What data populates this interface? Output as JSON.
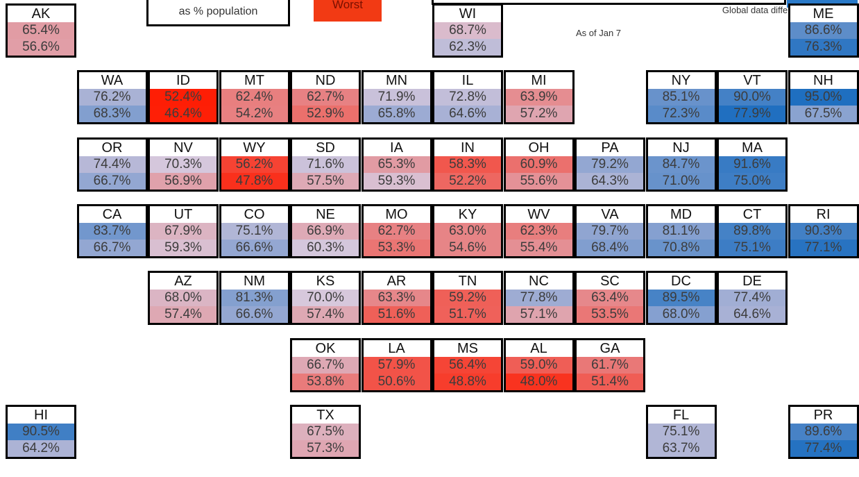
{
  "header": {
    "subtitle": "as % population",
    "worst_label": "Worst",
    "source_note": "Global data differs due to sources",
    "as_of": "As of Jan 7"
  },
  "scale": {
    "best_color": "#1f6fc0",
    "mid_color": "#d7c8dc",
    "worst_color": "#ff1a00"
  },
  "chart_data": {
    "type": "table",
    "layout": "tile-grid map of US states",
    "columns": [
      "state",
      "value_1_pct",
      "value_2_pct"
    ],
    "tiles": [
      {
        "state": "AK",
        "row": 0,
        "col": 0,
        "v1": 65.4,
        "v2": 56.6
      },
      {
        "state": "WI",
        "row": 0,
        "col": 6,
        "v1": 68.7,
        "v2": 62.3
      },
      {
        "state": "ME",
        "row": 0,
        "col": 11,
        "v1": 86.6,
        "v2": 76.3
      },
      {
        "state": "WA",
        "row": 1,
        "col": 1,
        "v1": 76.2,
        "v2": 68.3
      },
      {
        "state": "ID",
        "row": 1,
        "col": 2,
        "v1": 52.4,
        "v2": 46.4
      },
      {
        "state": "MT",
        "row": 1,
        "col": 3,
        "v1": 62.4,
        "v2": 54.2
      },
      {
        "state": "ND",
        "row": 1,
        "col": 4,
        "v1": 62.7,
        "v2": 52.9
      },
      {
        "state": "MN",
        "row": 1,
        "col": 5,
        "v1": 71.9,
        "v2": 65.8
      },
      {
        "state": "IL",
        "row": 1,
        "col": 6,
        "v1": 72.8,
        "v2": 64.6
      },
      {
        "state": "MI",
        "row": 1,
        "col": 7,
        "v1": 63.9,
        "v2": 57.2
      },
      {
        "state": "NY",
        "row": 1,
        "col": 9,
        "v1": 85.1,
        "v2": 72.3
      },
      {
        "state": "VT",
        "row": 1,
        "col": 10,
        "v1": 90.0,
        "v2": 77.9
      },
      {
        "state": "NH",
        "row": 1,
        "col": 11,
        "v1": 95.0,
        "v2": 67.5
      },
      {
        "state": "OR",
        "row": 2,
        "col": 1,
        "v1": 74.4,
        "v2": 66.7
      },
      {
        "state": "NV",
        "row": 2,
        "col": 2,
        "v1": 70.3,
        "v2": 56.9
      },
      {
        "state": "WY",
        "row": 2,
        "col": 3,
        "v1": 56.2,
        "v2": 47.8
      },
      {
        "state": "SD",
        "row": 2,
        "col": 4,
        "v1": 71.6,
        "v2": 57.5
      },
      {
        "state": "IA",
        "row": 2,
        "col": 5,
        "v1": 65.3,
        "v2": 59.3
      },
      {
        "state": "IN",
        "row": 2,
        "col": 6,
        "v1": 58.3,
        "v2": 52.2
      },
      {
        "state": "OH",
        "row": 2,
        "col": 7,
        "v1": 60.9,
        "v2": 55.6
      },
      {
        "state": "PA",
        "row": 2,
        "col": 8,
        "v1": 79.2,
        "v2": 64.3
      },
      {
        "state": "NJ",
        "row": 2,
        "col": 9,
        "v1": 84.7,
        "v2": 71.0
      },
      {
        "state": "MA",
        "row": 2,
        "col": 10,
        "v1": 91.6,
        "v2": 75.0
      },
      {
        "state": "CA",
        "row": 3,
        "col": 1,
        "v1": 83.7,
        "v2": 66.7
      },
      {
        "state": "UT",
        "row": 3,
        "col": 2,
        "v1": 67.9,
        "v2": 59.3
      },
      {
        "state": "CO",
        "row": 3,
        "col": 3,
        "v1": 75.1,
        "v2": 66.6
      },
      {
        "state": "NE",
        "row": 3,
        "col": 4,
        "v1": 66.9,
        "v2": 60.3
      },
      {
        "state": "MO",
        "row": 3,
        "col": 5,
        "v1": 62.7,
        "v2": 53.3
      },
      {
        "state": "KY",
        "row": 3,
        "col": 6,
        "v1": 63.0,
        "v2": 54.6
      },
      {
        "state": "WV",
        "row": 3,
        "col": 7,
        "v1": 62.3,
        "v2": 55.4
      },
      {
        "state": "VA",
        "row": 3,
        "col": 8,
        "v1": 79.7,
        "v2": 68.4
      },
      {
        "state": "MD",
        "row": 3,
        "col": 9,
        "v1": 81.1,
        "v2": 70.8
      },
      {
        "state": "CT",
        "row": 3,
        "col": 10,
        "v1": 89.8,
        "v2": 75.1
      },
      {
        "state": "RI",
        "row": 3,
        "col": 11,
        "v1": 90.3,
        "v2": 77.1
      },
      {
        "state": "AZ",
        "row": 4,
        "col": 2,
        "v1": 68.0,
        "v2": 57.4
      },
      {
        "state": "NM",
        "row": 4,
        "col": 3,
        "v1": 81.3,
        "v2": 66.6
      },
      {
        "state": "KS",
        "row": 4,
        "col": 4,
        "v1": 70.0,
        "v2": 57.4
      },
      {
        "state": "AR",
        "row": 4,
        "col": 5,
        "v1": 63.3,
        "v2": 51.6
      },
      {
        "state": "TN",
        "row": 4,
        "col": 6,
        "v1": 59.2,
        "v2": 51.7
      },
      {
        "state": "NC",
        "row": 4,
        "col": 7,
        "v1": 77.8,
        "v2": 57.1
      },
      {
        "state": "SC",
        "row": 4,
        "col": 8,
        "v1": 63.4,
        "v2": 53.5
      },
      {
        "state": "DC",
        "row": 4,
        "col": 9,
        "v1": 89.5,
        "v2": 68.0
      },
      {
        "state": "DE",
        "row": 4,
        "col": 10,
        "v1": 77.4,
        "v2": 64.6
      },
      {
        "state": "OK",
        "row": 5,
        "col": 4,
        "v1": 66.7,
        "v2": 53.8
      },
      {
        "state": "LA",
        "row": 5,
        "col": 5,
        "v1": 57.9,
        "v2": 50.6
      },
      {
        "state": "MS",
        "row": 5,
        "col": 6,
        "v1": 56.4,
        "v2": 48.8
      },
      {
        "state": "AL",
        "row": 5,
        "col": 7,
        "v1": 59.0,
        "v2": 48.0
      },
      {
        "state": "GA",
        "row": 5,
        "col": 8,
        "v1": 61.7,
        "v2": 51.4
      },
      {
        "state": "HI",
        "row": 6,
        "col": 0,
        "v1": 90.5,
        "v2": 64.2
      },
      {
        "state": "TX",
        "row": 6,
        "col": 4,
        "v1": 67.5,
        "v2": 57.3
      },
      {
        "state": "FL",
        "row": 6,
        "col": 9,
        "v1": 75.1,
        "v2": 63.7
      },
      {
        "state": "PR",
        "row": 6,
        "col": 11,
        "v1": 89.6,
        "v2": 77.4
      }
    ]
  }
}
